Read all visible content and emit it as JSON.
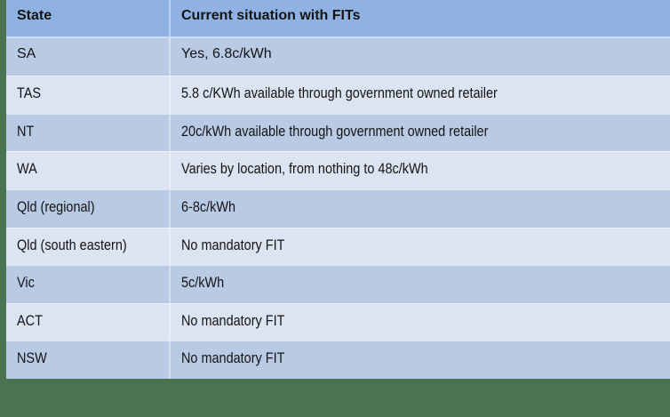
{
  "chart_data": {
    "type": "table",
    "columns": [
      "State",
      "Current situation with FITs"
    ],
    "rows": [
      [
        "SA",
        "Yes, 6.8c/kWh"
      ],
      [
        "TAS",
        "5.8 c/KWh available through government owned retailer"
      ],
      [
        "NT",
        "20c/kWh available through government owned retailer"
      ],
      [
        "WA",
        "Varies by location, from nothing to 48c/kWh"
      ],
      [
        "Qld (regional)",
        "6-8c/kWh"
      ],
      [
        "Qld (south eastern)",
        "No mandatory FIT"
      ],
      [
        "Vic",
        "5c/kWh"
      ],
      [
        "ACT",
        "No mandatory FIT"
      ],
      [
        "NSW",
        "No mandatory FIT"
      ]
    ]
  },
  "colors": {
    "header_bg": "#8FB2E2",
    "band_dark": "#B8CAE4",
    "band_light": "#DCE4F1",
    "background_green": "#497351",
    "text": "#141414"
  }
}
